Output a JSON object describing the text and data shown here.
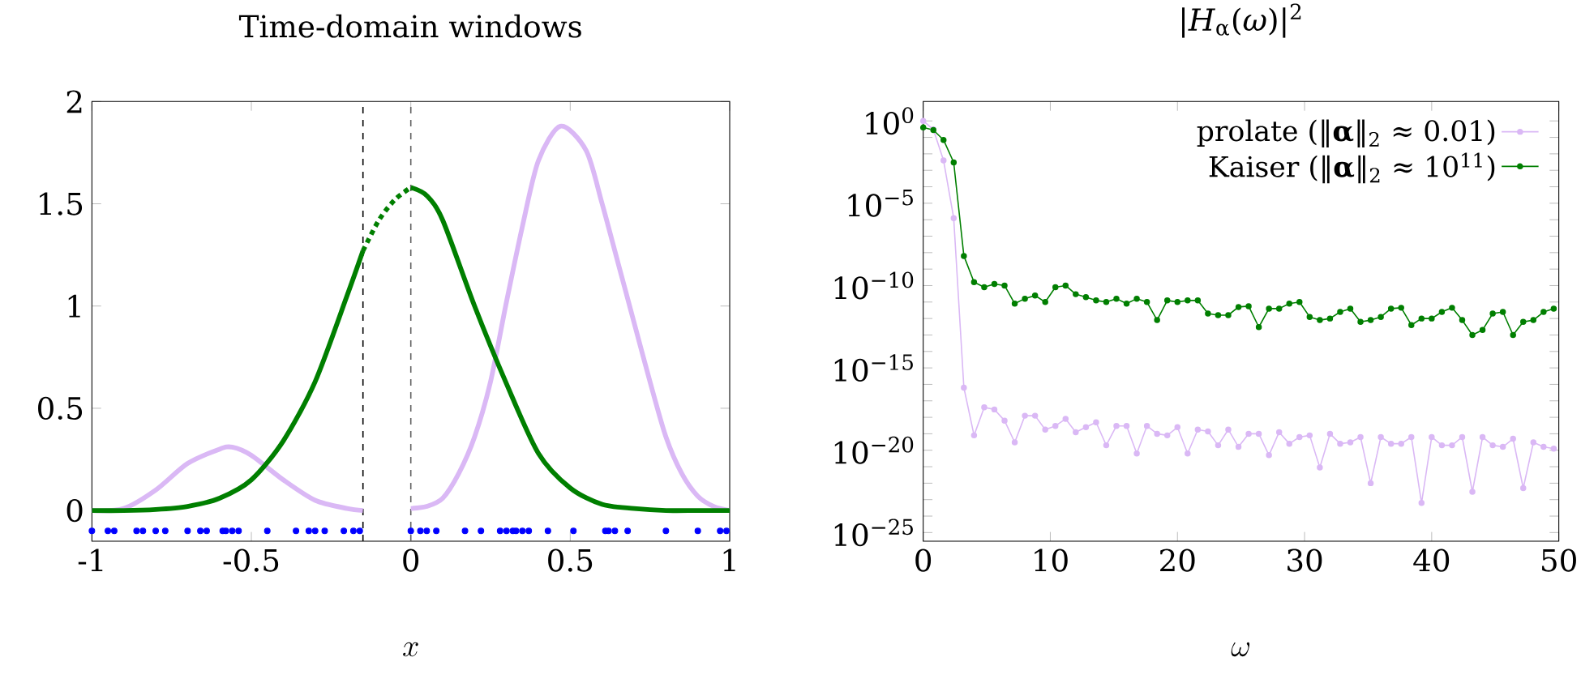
{
  "chart_data": [
    {
      "type": "line",
      "title": "Time-domain windows",
      "xlabel": "x",
      "xlim": [
        -1,
        1
      ],
      "ylim": [
        -0.15,
        2
      ],
      "xticks": [
        -1,
        -0.5,
        0,
        0.5,
        1
      ],
      "yticks": [
        0,
        0.5,
        1,
        1.5,
        2
      ],
      "ref_lines": [
        {
          "axis": "x",
          "value": -0.15,
          "color": "#000000",
          "line_style": "dashed"
        },
        {
          "axis": "x",
          "value": 0,
          "color": "#606060",
          "line_style": "dashed"
        }
      ],
      "series": [
        {
          "color": "#dab8f5",
          "x": [
            -1,
            -0.9,
            -0.8,
            -0.7,
            -0.6,
            -0.56,
            -0.5,
            -0.4,
            -0.3,
            -0.2,
            -0.15,
            -0.08,
            0,
            0.05,
            0.1,
            0.15,
            0.2,
            0.25,
            0.3,
            0.35,
            0.4,
            0.47,
            0.55,
            0.6,
            0.65,
            0.7,
            0.75,
            0.8,
            0.85,
            0.9,
            0.95,
            1
          ],
          "values": [
            0,
            0.01,
            0.1,
            0.23,
            0.3,
            0.31,
            0.27,
            0.15,
            0.05,
            0.01,
            0,
            null,
            0.01,
            0.02,
            0.06,
            0.18,
            0.36,
            0.63,
            1.02,
            1.39,
            1.71,
            1.88,
            1.76,
            1.5,
            1.21,
            0.92,
            0.63,
            0.36,
            0.18,
            0.07,
            0.02,
            0
          ]
        },
        {
          "color": "#007f00",
          "x": [
            -1,
            -0.9,
            -0.8,
            -0.7,
            -0.6,
            -0.5,
            -0.4,
            -0.3,
            -0.2,
            -0.15,
            -0.08,
            0,
            0.05,
            0.1,
            0.2,
            0.3,
            0.4,
            0.5,
            0.6,
            0.7,
            0.8,
            0.9,
            1
          ],
          "values": [
            0,
            0,
            0.005,
            0.02,
            0.06,
            0.15,
            0.34,
            0.63,
            1.05,
            1.27,
            null,
            1.58,
            1.54,
            1.42,
            1.0,
            0.62,
            0.28,
            0.11,
            0.03,
            0.01,
            0,
            0,
            0
          ]
        },
        {
          "color": "#007f00",
          "line_style": "dotted",
          "x": [
            -0.15,
            -0.1,
            -0.05,
            0
          ],
          "values": [
            1.27,
            1.42,
            1.52,
            1.58
          ]
        },
        {
          "type": "scatter",
          "color": "#0000ff",
          "x": [
            -1.0,
            -0.95,
            -0.93,
            -0.86,
            -0.84,
            -0.8,
            -0.77,
            -0.7,
            -0.66,
            -0.64,
            -0.59,
            -0.58,
            -0.56,
            -0.54,
            -0.45,
            -0.36,
            -0.32,
            -0.3,
            -0.27,
            -0.21,
            -0.18,
            -0.16,
            0.0,
            0.03,
            0.05,
            0.08,
            0.17,
            0.22,
            0.28,
            0.3,
            0.32,
            0.33,
            0.35,
            0.37,
            0.43,
            0.51,
            0.61,
            0.62,
            0.64,
            0.68,
            0.8,
            0.9,
            0.97,
            0.99
          ],
          "values": [
            -0.1,
            -0.1,
            -0.1,
            -0.1,
            -0.1,
            -0.1,
            -0.1,
            -0.1,
            -0.1,
            -0.1,
            -0.1,
            -0.1,
            -0.1,
            -0.1,
            -0.1,
            -0.1,
            -0.1,
            -0.1,
            -0.1,
            -0.1,
            -0.1,
            -0.1,
            -0.1,
            -0.1,
            -0.1,
            -0.1,
            -0.1,
            -0.1,
            -0.1,
            -0.1,
            -0.1,
            -0.1,
            -0.1,
            -0.1,
            -0.1,
            -0.1,
            -0.1,
            -0.1,
            -0.1,
            -0.1,
            -0.1,
            -0.1,
            -0.1,
            -0.1
          ]
        }
      ]
    },
    {
      "type": "line",
      "title": "|*H*$_{α}$(*ω*)|$^{2}$",
      "xlabel": "\\omega",
      "log": "y",
      "marker": "circle",
      "legend": "top right",
      "xlim": [
        0,
        50
      ],
      "ylim": [
        3e-26,
        15
      ],
      "xticks": [
        0,
        10,
        20,
        30,
        40,
        50
      ],
      "yticks": [
        {
          "value": 1,
          "label": "10$^{0}$"
        },
        {
          "value": 0.1,
          "label": null
        },
        {
          "value": 0.01,
          "label": null
        },
        {
          "value": 0.001,
          "label": null
        },
        {
          "value": 0.0001,
          "label": null
        },
        {
          "value": 1e-05,
          "label": "10$^{−5}$"
        },
        {
          "value": 1e-06,
          "label": null
        },
        {
          "value": 1e-07,
          "label": null
        },
        {
          "value": 1e-08,
          "label": null
        },
        {
          "value": 1e-09,
          "label": null
        },
        {
          "value": 1e-10,
          "label": "10$^{−10}$"
        },
        {
          "value": 1e-11,
          "label": null
        },
        {
          "value": 1e-12,
          "label": null
        },
        {
          "value": 1e-13,
          "label": null
        },
        {
          "value": 1e-14,
          "label": null
        },
        {
          "value": 1e-15,
          "label": "10$^{−15}$"
        },
        {
          "value": 1e-16,
          "label": null
        },
        {
          "value": 1e-17,
          "label": null
        },
        {
          "value": 1e-18,
          "label": null
        },
        {
          "value": 1e-19,
          "label": null
        },
        {
          "value": 1e-20,
          "label": "10$^{−20}$"
        },
        {
          "value": 1e-21,
          "label": null
        },
        {
          "value": 1e-22,
          "label": null
        },
        {
          "value": 1e-23,
          "label": null
        },
        {
          "value": 1e-24,
          "label": null
        },
        {
          "value": 1e-25,
          "label": "10$^{−25}$"
        }
      ],
      "x": [
        0,
        0.8,
        1.6,
        2.4,
        3.2,
        4,
        4.8,
        5.6,
        6.4,
        7.2,
        8,
        8.8,
        9.6,
        10.4,
        11.2,
        12,
        12.8,
        13.6,
        14.4,
        15.2,
        16,
        16.8,
        17.6,
        18.4,
        19.2,
        20,
        20.8,
        21.6,
        22.4,
        23.2,
        24,
        24.8,
        25.6,
        26.4,
        27.2,
        28,
        28.8,
        29.6,
        30.4,
        31.2,
        32,
        32.8,
        33.6,
        34.4,
        35.2,
        36,
        36.8,
        37.6,
        38.4,
        39.2,
        40,
        40.8,
        41.6,
        42.4,
        43.2,
        44,
        44.8,
        45.6,
        46.4,
        47.2,
        48,
        48.8,
        49.6
      ],
      "series": [
        {
          "name": "prolate (‖**α**‖$_{2}$ ≈ 0.01)",
          "color": "#dab8f5",
          "values": [
            1,
            0.3,
            0.004,
            1.25e-06,
            6.3e-17,
            8e-20,
            4e-18,
            3e-18,
            6.3e-19,
            3e-20,
            1.25e-18,
            1.25e-18,
            1.8e-19,
            3e-19,
            8e-19,
            1.25e-19,
            2.5e-19,
            5e-19,
            2e-20,
            3e-19,
            3e-19,
            6.3e-21,
            3e-19,
            1e-19,
            8e-20,
            2.5e-19,
            6.3e-21,
            1.8e-19,
            1.4e-19,
            2e-20,
            1.8e-19,
            1.6e-20,
            1e-19,
            1e-19,
            5e-21,
            1.25e-19,
            2.5e-20,
            6.3e-20,
            8e-20,
            9e-22,
            1e-19,
            2.5e-20,
            3e-20,
            6.3e-20,
            1e-22,
            6.3e-20,
            2.5e-20,
            2.5e-20,
            6.3e-20,
            6.3e-24,
            6.3e-20,
            2e-20,
            2e-20,
            6.3e-20,
            3e-23,
            6.3e-20,
            2e-20,
            1.6e-20,
            5e-20,
            5e-23,
            3e-20,
            1.6e-20,
            1.25e-20
          ]
        },
        {
          "name": "Kaiser (‖**α**‖$_{2}$ ≈ 10$^{11}$)",
          "color": "#007f00",
          "values": [
            0.4,
            0.28,
            0.07,
            0.003,
            6.3e-09,
            1.6e-10,
            8e-11,
            1.25e-10,
            1e-10,
            8e-12,
            1.6e-11,
            2.5e-11,
            1e-11,
            8e-11,
            1e-10,
            3e-11,
            2e-11,
            1.25e-11,
            1e-11,
            1.6e-11,
            8e-12,
            1.6e-11,
            1e-11,
            8e-13,
            1.25e-11,
            1e-11,
            1.25e-11,
            1.25e-11,
            2e-12,
            1.6e-12,
            1.6e-12,
            5e-12,
            5.6e-12,
            3e-13,
            4e-12,
            4e-12,
            8e-12,
            1e-11,
            1.25e-12,
            8e-13,
            1e-12,
            2.5e-12,
            4e-12,
            6.3e-13,
            8e-13,
            1.25e-12,
            4e-12,
            4.5e-12,
            4e-13,
            1e-12,
            1e-12,
            2.5e-12,
            4.5e-12,
            8e-13,
            1e-13,
            2e-13,
            2e-12,
            2.5e-12,
            1e-13,
            6.3e-13,
            8e-13,
            2.5e-12,
            4e-12
          ]
        }
      ]
    }
  ]
}
